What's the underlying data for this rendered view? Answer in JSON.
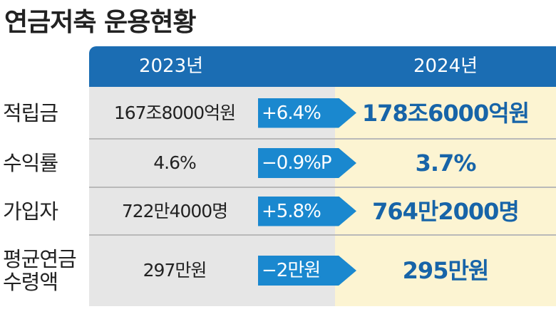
{
  "title": "연금저축 운용현황",
  "table": {
    "header": [
      "2023년",
      "2024년"
    ],
    "rows": [
      {
        "label": "적립금",
        "before": "167조8000억원",
        "change": "+6.4%",
        "after": "178조6000억원"
      },
      {
        "label": "수익률",
        "before": "4.6%",
        "change": "−0.9%P",
        "after": "3.7%"
      },
      {
        "label": "가입자",
        "before": "722만4000명",
        "change": "+5.8%",
        "after": "764만2000명"
      },
      {
        "label": "평균연금\n수령액",
        "before": "297만원",
        "change": "−2만원",
        "after": "295만원"
      }
    ]
  }
}
